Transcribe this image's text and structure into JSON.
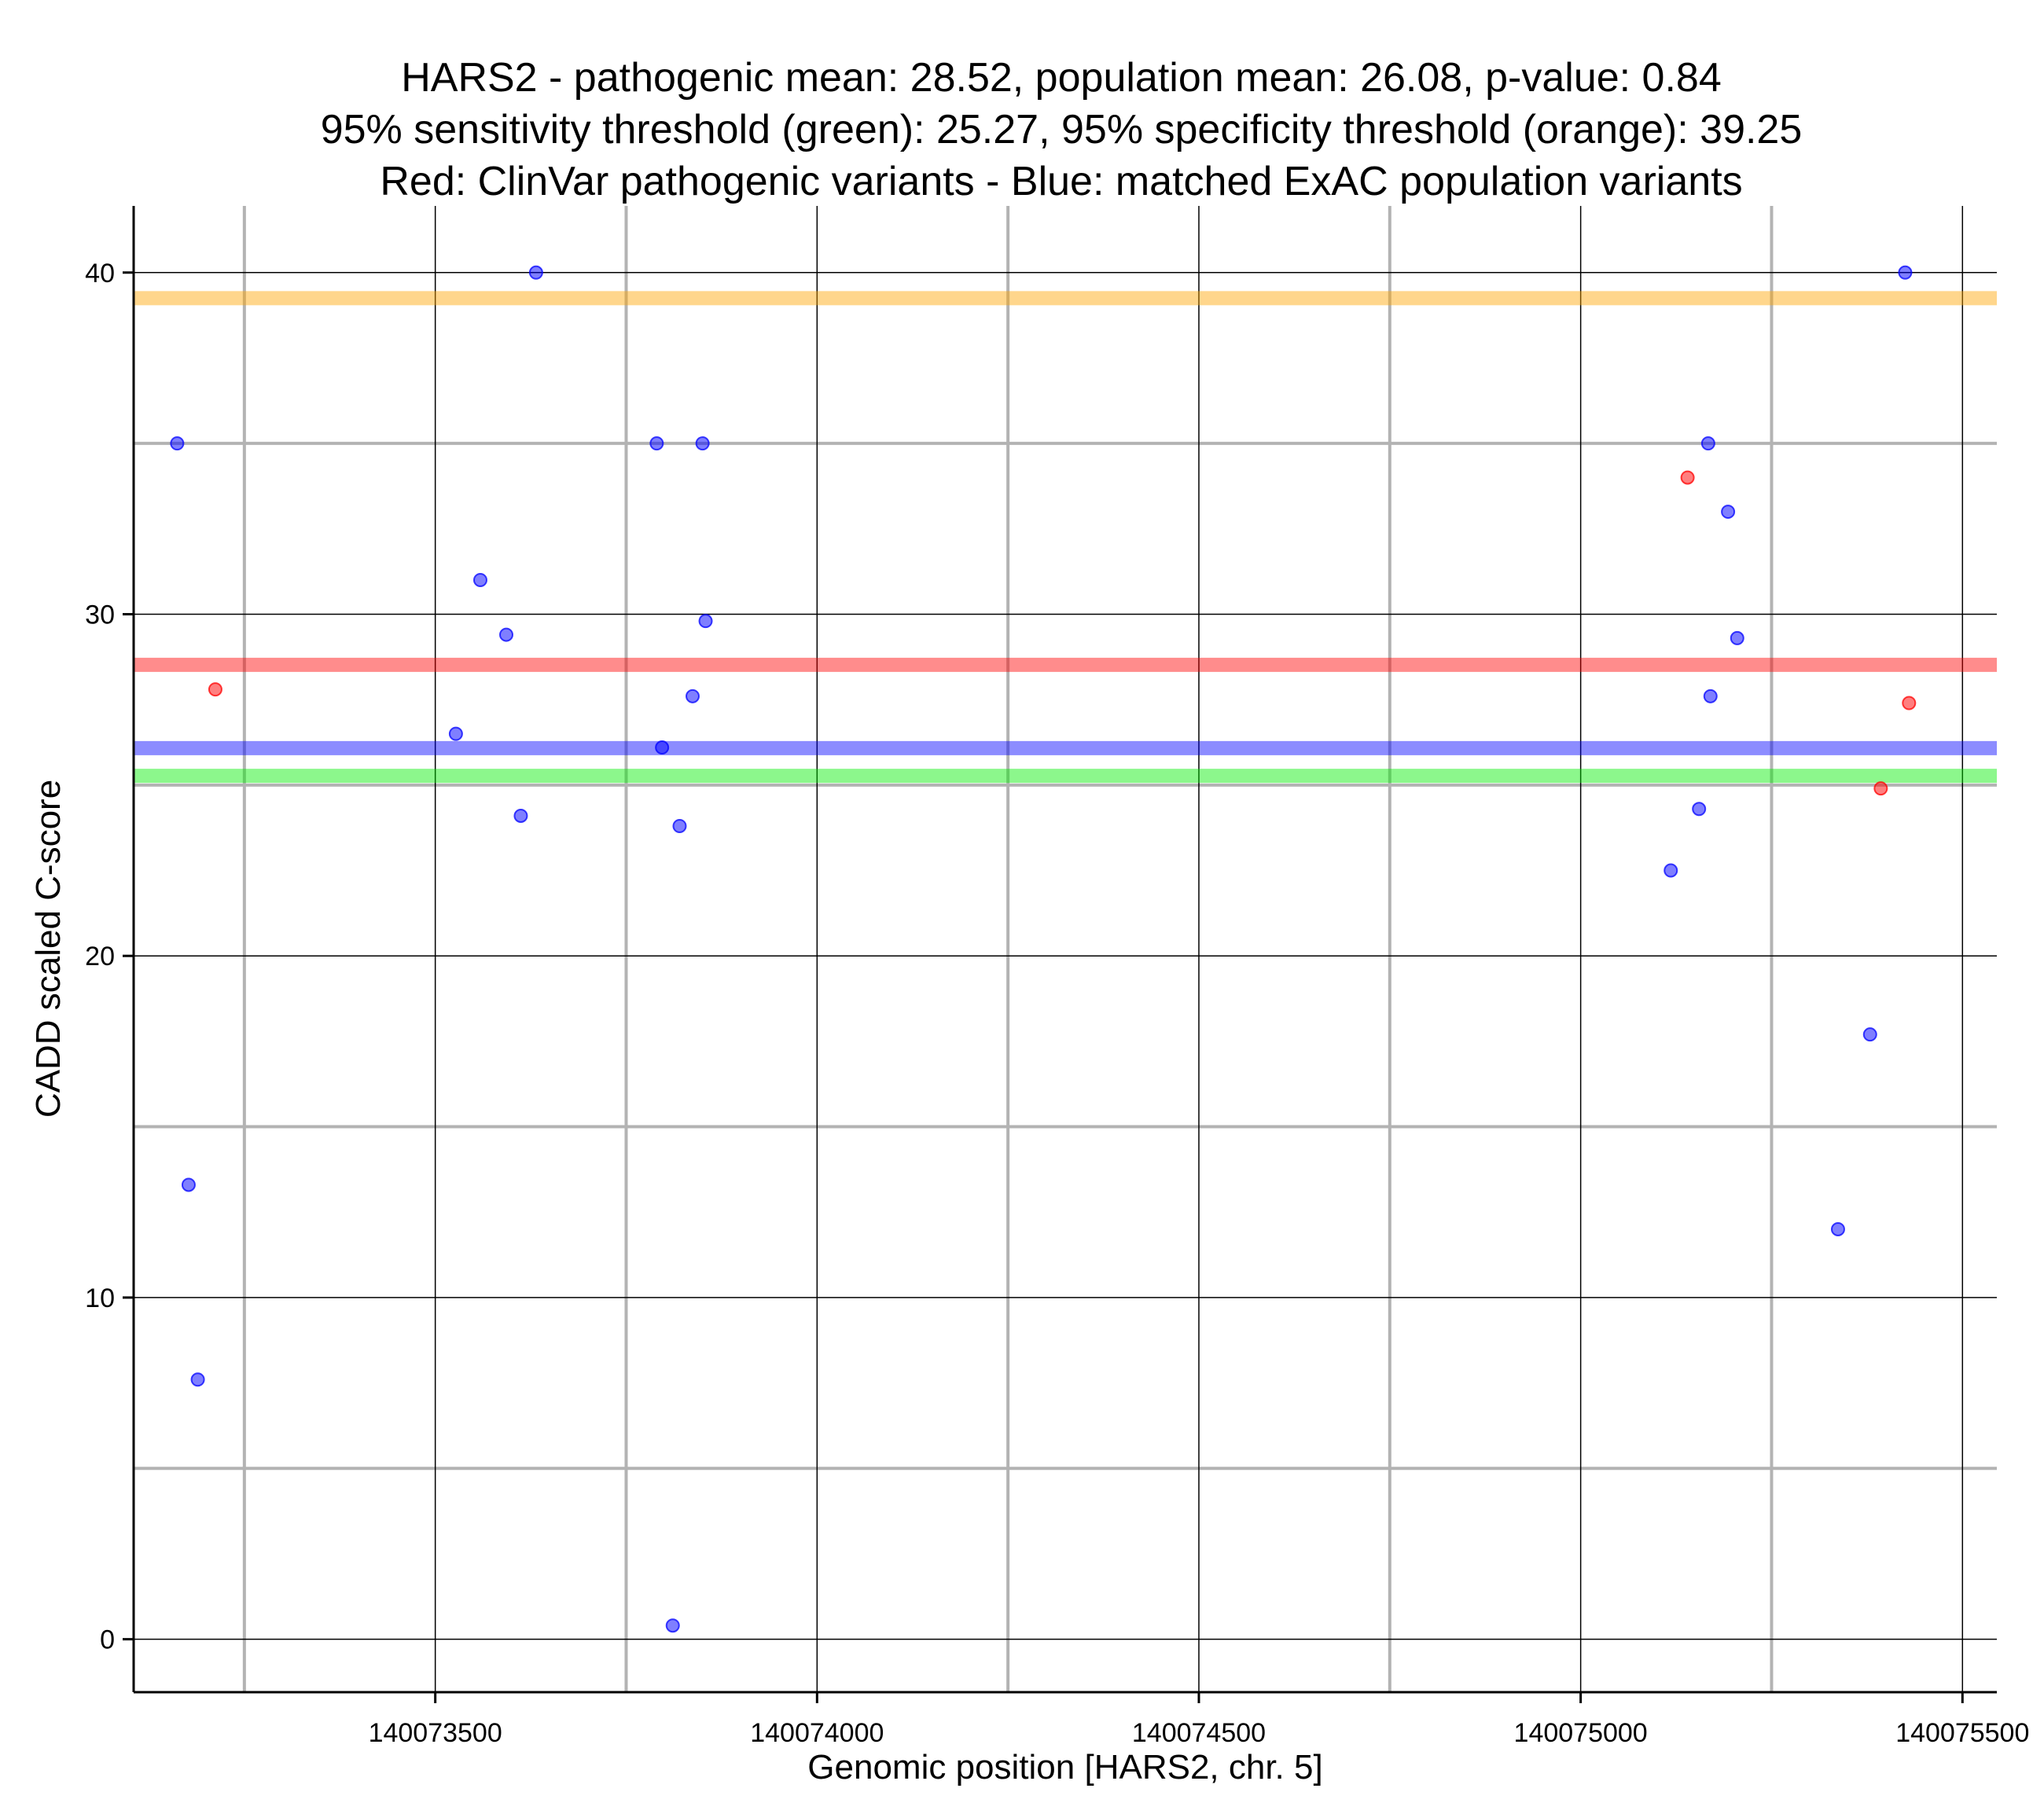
{
  "chart_data": {
    "type": "scatter",
    "title_lines": [
      "HARS2 - pathogenic mean: 28.52, population mean: 26.08, p-value: 0.84",
      "95% sensitivity threshold (green): 25.27, 95% specificity threshold (orange): 39.25",
      "Red: ClinVar pathogenic variants - Blue: matched ExAC population variants"
    ],
    "xlabel": "Genomic position [HARS2, chr. 5]",
    "ylabel": "CADD scaled C-score",
    "xlim": [
      140073105,
      140075545
    ],
    "ylim": [
      -1.55,
      41.95
    ],
    "x_ticks": [
      140073500,
      140074000,
      140074500,
      140075000,
      140075500
    ],
    "x_tick_labels": [
      "140073500",
      "140074000",
      "140074500",
      "140075000",
      "140075500"
    ],
    "x_minor_grid": [
      140073250,
      140073750,
      140074250,
      140074750,
      140075250
    ],
    "y_ticks": [
      0,
      10,
      20,
      30,
      40
    ],
    "y_tick_labels": [
      "0",
      "10",
      "20",
      "30",
      "40"
    ],
    "y_minor_grid": [
      5,
      15,
      25,
      35
    ],
    "grid": true,
    "legend": "none",
    "hlines": [
      {
        "name": "specificity-threshold",
        "value": 39.25,
        "color": "#ffa500"
      },
      {
        "name": "pathogenic-mean",
        "value": 28.52,
        "color": "#ff0000"
      },
      {
        "name": "population-mean",
        "value": 26.08,
        "color": "#0000ff"
      },
      {
        "name": "sensitivity-threshold",
        "value": 25.27,
        "color": "#00ee00"
      }
    ],
    "series": [
      {
        "name": "ClinVar pathogenic variants",
        "color": "#ff0000",
        "x": [
          140073212,
          140075140,
          140075393,
          140075430
        ],
        "y": [
          27.8,
          34.0,
          24.9,
          27.4
        ]
      },
      {
        "name": "matched ExAC population variants",
        "color": "#0000ff",
        "x": [
          140073162,
          140073177,
          140073189,
          140073527,
          140073559,
          140073593,
          140073612,
          140073632,
          140073790,
          140073797,
          140073811,
          140073820,
          140073837,
          140073850,
          140073854,
          140075118,
          140075155,
          140075167,
          140075170,
          140075193,
          140075205,
          140075337,
          140075379,
          140075425
        ],
        "y": [
          35.0,
          13.3,
          7.6,
          26.5,
          31.0,
          29.4,
          24.1,
          40.0,
          35.0,
          26.1,
          0.4,
          23.8,
          27.6,
          35.0,
          29.8,
          22.5,
          24.3,
          35.0,
          27.6,
          33.0,
          29.3,
          12.0,
          17.7,
          40.0
        ]
      }
    ]
  }
}
